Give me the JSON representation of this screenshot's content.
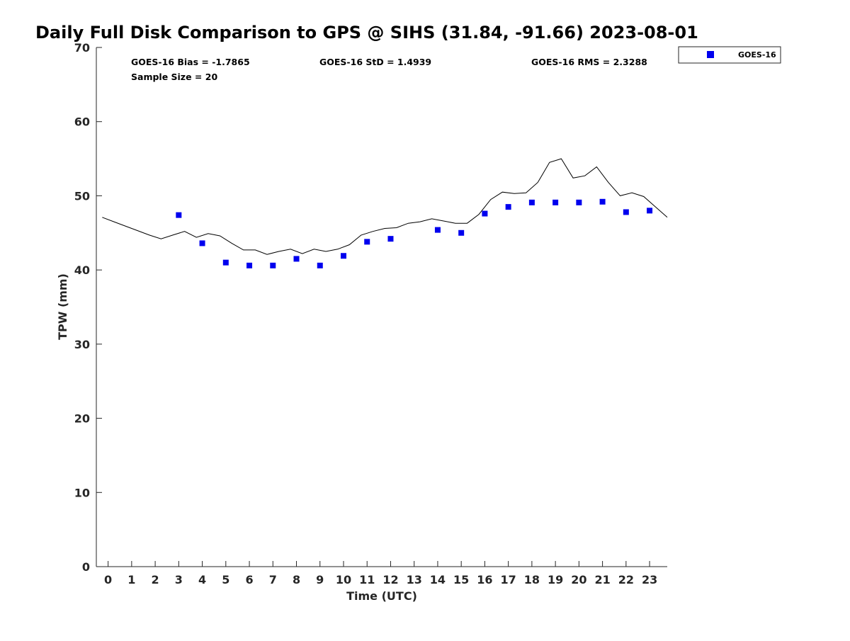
{
  "chart_data": {
    "type": "scatter",
    "title": "Daily Full Disk Comparison to GPS @ SIHS (31.84, -91.66) 2023-08-01",
    "xlabel": "Time (UTC)",
    "ylabel": "TPW (mm)",
    "xlim": [
      -0.5,
      23.75
    ],
    "ylim": [
      0,
      70
    ],
    "xticks": [
      "0",
      "1",
      "2",
      "3",
      "4",
      "5",
      "6",
      "7",
      "8",
      "9",
      "10",
      "11",
      "12",
      "13",
      "14",
      "15",
      "16",
      "17",
      "18",
      "19",
      "20",
      "21",
      "22",
      "23"
    ],
    "yticks": [
      "0",
      "10",
      "20",
      "30",
      "40",
      "50",
      "60",
      "70"
    ],
    "grid": false,
    "legend_position": "top-right (outside plot)",
    "stats": {
      "bias": "GOES-16 Bias = -1.7865",
      "std": "GOES-16 StD = 1.4939",
      "rms": "GOES-16 RMS = 2.3288",
      "sample": "Sample Size = 20"
    },
    "series": [
      {
        "name": "GOES-16",
        "kind": "scatter",
        "marker": "square",
        "color": "#0000ee",
        "x": [
          3,
          4,
          5,
          6,
          7,
          8,
          9,
          10,
          11,
          12,
          14,
          15,
          16,
          17,
          18,
          19,
          20,
          21,
          22,
          23
        ],
        "y": [
          47.4,
          43.6,
          41.0,
          40.6,
          40.6,
          41.5,
          40.6,
          41.9,
          43.8,
          44.2,
          45.4,
          45.0,
          47.6,
          48.5,
          49.1,
          49.1,
          49.1,
          49.2,
          47.8,
          48.0
        ]
      },
      {
        "kind": "line",
        "color": "#000000",
        "x": [
          -0.25,
          0.25,
          0.75,
          1.25,
          1.75,
          2.25,
          2.75,
          3.25,
          3.75,
          4.25,
          4.75,
          5.25,
          5.75,
          6.25,
          6.75,
          7.25,
          7.75,
          8.25,
          8.75,
          9.25,
          9.75,
          10.25,
          10.75,
          11.25,
          11.75,
          12.25,
          12.75,
          13.25,
          13.75,
          14.25,
          14.75,
          15.25,
          15.75,
          16.25,
          16.75,
          17.25,
          17.75,
          18.25,
          18.75,
          19.25,
          19.75,
          20.25,
          20.75,
          21.25,
          21.75,
          22.25,
          22.75,
          23.25,
          23.75
        ],
        "y": [
          47.1,
          46.5,
          45.9,
          45.3,
          44.7,
          44.2,
          44.7,
          45.2,
          44.4,
          44.9,
          44.6,
          43.6,
          42.7,
          42.7,
          42.1,
          42.5,
          42.8,
          42.2,
          42.8,
          42.5,
          42.8,
          43.4,
          44.7,
          45.2,
          45.6,
          45.7,
          46.3,
          46.5,
          46.9,
          46.6,
          46.3,
          46.3,
          47.5,
          49.5,
          50.5,
          50.3,
          50.4,
          51.8,
          54.5,
          55.0,
          52.4,
          52.7,
          53.9,
          51.8,
          50.0,
          50.4,
          49.9,
          48.5,
          47.1
        ]
      }
    ]
  }
}
